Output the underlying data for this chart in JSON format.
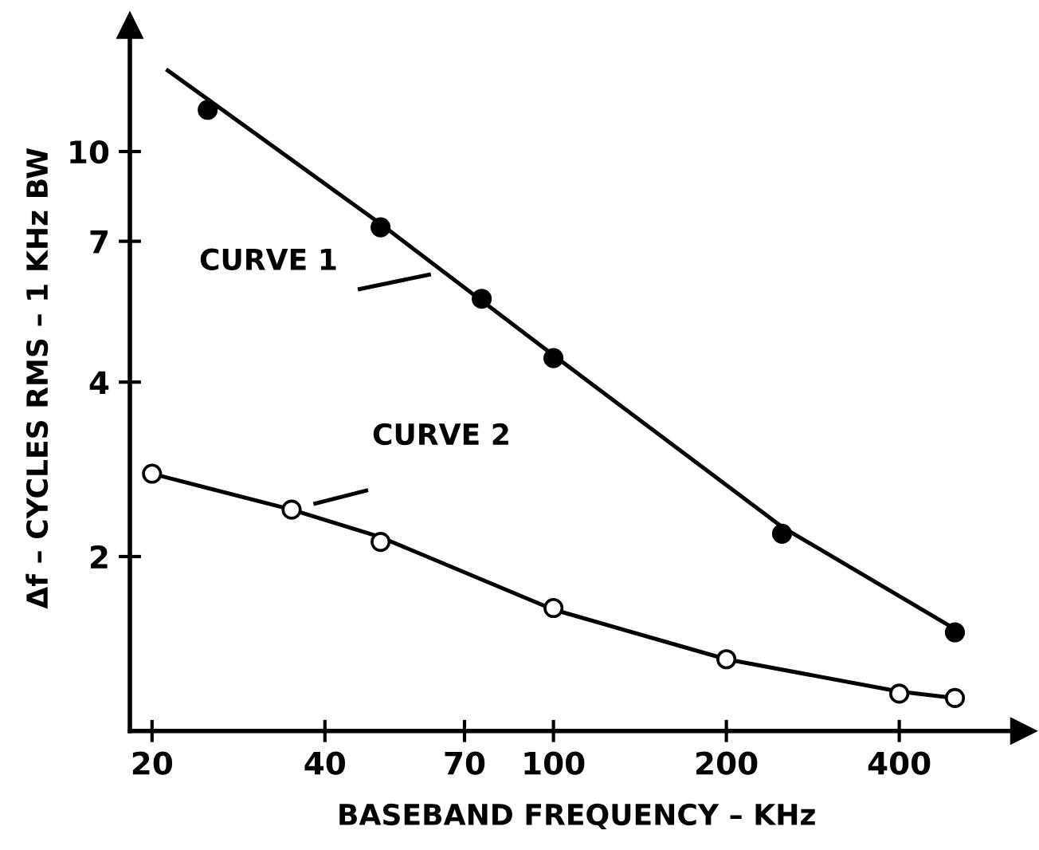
{
  "chart_data": {
    "type": "scatter",
    "xlabel": "BASEBAND FREQUENCY – KHz",
    "ylabel": "Δf – CYCLES RMS – 1 KHz BW",
    "log": "xy",
    "xlim": [
      18.3,
      658
    ],
    "ylim": [
      1,
      16.5
    ],
    "xticks": [
      20,
      40,
      70,
      100,
      200,
      400
    ],
    "yticks": [
      2,
      4,
      7,
      10
    ],
    "grid": false,
    "annotations": [
      "CURVE 1",
      "CURVE 2"
    ],
    "series": [
      {
        "color": "#000000",
        "marker": "circle",
        "x": [
          25,
          50,
          75,
          100,
          250,
          500
        ],
        "values": [
          11.8,
          7.4,
          5.57,
          4.4,
          2.19,
          1.48
        ]
      },
      {
        "color": "#ffffff",
        "marker": "circle",
        "x": [
          20,
          35,
          50,
          100,
          200,
          400,
          500
        ],
        "values": [
          2.78,
          2.41,
          2.12,
          1.63,
          1.33,
          1.16,
          1.14
        ]
      },
      {
        "type": "line",
        "color": "#000000",
        "marker": "none",
        "line_style": "solid",
        "x": [
          21.3,
          50,
          100,
          250,
          500
        ],
        "values": [
          13.8,
          7.5,
          4.45,
          2.25,
          1.5
        ]
      },
      {
        "type": "line",
        "color": "#000000",
        "marker": "none",
        "line_style": "solid",
        "x": [
          20,
          35,
          50,
          100,
          200,
          400,
          500
        ],
        "values": [
          2.78,
          2.41,
          2.16,
          1.62,
          1.33,
          1.17,
          1.14
        ]
      }
    ]
  }
}
